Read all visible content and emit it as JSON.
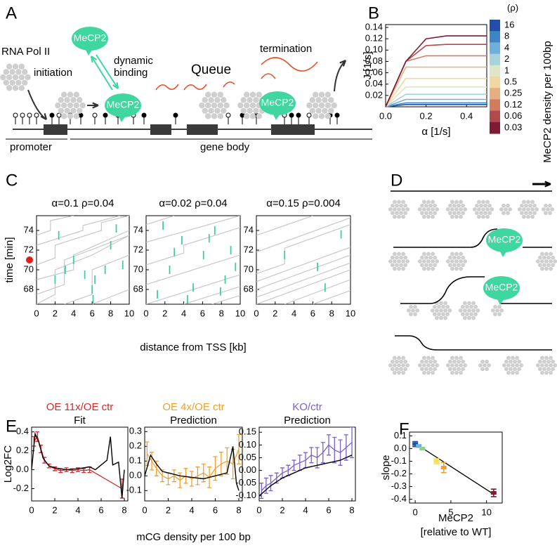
{
  "panel_labels": [
    "A",
    "B",
    "C",
    "D",
    "E",
    "F"
  ],
  "diagram_a": {
    "pol": "RNA Pol II",
    "initiation": "initiation",
    "mecp2": "MeCP2",
    "binding": [
      "dynamic",
      "binding"
    ],
    "queue": "Queue",
    "termination": "termination",
    "promoter": "promoter",
    "gene_body": "gene body"
  },
  "diagram_d": {
    "mecp2": "MeCP2"
  },
  "chart_data": [
    {
      "type": "line",
      "xlabel": "α [1/s]",
      "ylabel": "J [1/s]",
      "colorbar_title": "(ρ)",
      "colorbar_label": "MeCP2 density per 100bp",
      "x": [
        0,
        0.1,
        0.2,
        0.3,
        0.4,
        0.5
      ],
      "xlim": [
        0,
        0.5
      ],
      "xticks": [
        {
          "value": 0,
          "label": "0.0"
        },
        0.2,
        0.4
      ],
      "ylim": [
        0,
        0.145
      ],
      "yticks": [
        0.02,
        0.04,
        0.06,
        0.08,
        {
          "value": 0.1,
          "label": "0.10"
        },
        0.12,
        0.14
      ],
      "series": [
        {
          "name": "16",
          "color": "#1f4fa8",
          "values": [
            0,
            0.004,
            0.004,
            0.004,
            0.004,
            0.004
          ]
        },
        {
          "name": "8",
          "color": "#3d86c6",
          "values": [
            0,
            0.007,
            0.007,
            0.007,
            0.007,
            0.007
          ]
        },
        {
          "name": "4",
          "color": "#6fb0d8",
          "values": [
            0,
            0.013,
            0.013,
            0.013,
            0.013,
            0.013
          ]
        },
        {
          "name": "2",
          "color": "#a8d2dc",
          "values": [
            0,
            0.022,
            0.022,
            0.022,
            0.022,
            0.022
          ]
        },
        {
          "name": "1",
          "color": "#dfe6c4",
          "values": [
            0,
            0.035,
            0.035,
            0.035,
            0.035,
            0.035
          ]
        },
        {
          "name": "0.5",
          "color": "#f2d7a0",
          "values": [
            0,
            0.05,
            0.05,
            0.05,
            0.05,
            0.05
          ]
        },
        {
          "name": "0.25",
          "color": "#e8ae7f",
          "values": [
            0,
            0.07,
            0.07,
            0.07,
            0.07,
            0.07
          ]
        },
        {
          "name": "0.12",
          "color": "#d07c62",
          "values": [
            0,
            0.08,
            0.09,
            0.09,
            0.09,
            0.09
          ]
        },
        {
          "name": "0.06",
          "color": "#b04a4c",
          "values": [
            0,
            0.08,
            0.108,
            0.11,
            0.11,
            0.11
          ]
        },
        {
          "name": "0.03",
          "color": "#7e1a33",
          "values": [
            0,
            0.08,
            0.12,
            0.125,
            0.125,
            0.125
          ]
        }
      ]
    },
    {
      "type": "kymograph",
      "title": "α=0.1    ρ=0.04",
      "ylabel": "time [min]",
      "xlim": [
        0,
        10
      ],
      "xticks": [
        0,
        2,
        4,
        6,
        8,
        10
      ],
      "ylim": [
        66.5,
        75.5
      ],
      "yticks": [
        68,
        70,
        72,
        74
      ],
      "line_color": "#c8c8c8",
      "event_color": "#3fcf9f",
      "lines": [
        {
          "x": [
            0,
            2,
            2,
            6,
            10
          ],
          "y": [
            66.5,
            67.5,
            70,
            71.5,
            73.5
          ]
        },
        {
          "x": [
            0,
            3,
            3,
            10
          ],
          "y": [
            67.5,
            68.5,
            71,
            73.5
          ]
        },
        {
          "x": [
            0,
            4,
            4,
            10
          ],
          "y": [
            69,
            70,
            71.5,
            74
          ]
        },
        {
          "x": [
            0,
            2,
            2,
            7,
            7,
            10
          ],
          "y": [
            70.5,
            71.2,
            72.5,
            74,
            74.8,
            75.5
          ]
        },
        {
          "x": [
            3,
            6,
            6,
            10
          ],
          "y": [
            66.5,
            67.5,
            70,
            71.5
          ]
        },
        {
          "x": [
            6,
            10
          ],
          "y": [
            66.5,
            68
          ]
        },
        {
          "x": [
            0,
            5,
            5,
            9
          ],
          "y": [
            72.5,
            74,
            74.5,
            75.5
          ]
        },
        {
          "x": [
            0,
            1.5,
            1.5,
            4
          ],
          "y": [
            73.5,
            74,
            75,
            75.5
          ]
        }
      ],
      "events": {
        "x": [
          2,
          3.1,
          4,
          5.2,
          6,
          6.3,
          7.4,
          8,
          8.6,
          2.4,
          6.1,
          9.3
        ],
        "y": [
          69,
          70,
          71,
          69.5,
          68,
          69,
          70,
          72.5,
          74.2,
          73.5,
          67,
          70.5
        ]
      }
    },
    {
      "type": "kymograph",
      "title": "α=0.02    ρ=0.04",
      "xlabel": "distance from TSS [kb]",
      "xlim": [
        0,
        10
      ],
      "xticks": [
        0,
        2,
        4,
        6,
        8,
        10
      ],
      "ylim": [
        66.5,
        75.5
      ],
      "yticks": [
        68,
        70,
        72,
        74
      ],
      "line_color": "#c8c8c8",
      "event_color": "#3fcf9f",
      "lines": [
        {
          "x": [
            0,
            10
          ],
          "y": [
            66.5,
            69.5
          ]
        },
        {
          "x": [
            0,
            10
          ],
          "y": [
            68.5,
            71.5
          ]
        },
        {
          "x": [
            0,
            4,
            4,
            10
          ],
          "y": [
            70.5,
            71.7,
            72.5,
            74.3
          ]
        },
        {
          "x": [
            0,
            10
          ],
          "y": [
            72.8,
            75.5
          ]
        },
        {
          "x": [
            4,
            10
          ],
          "y": [
            66.5,
            68.3
          ]
        },
        {
          "x": [
            0,
            3
          ],
          "y": [
            74.6,
            75.5
          ]
        },
        {
          "x": [
            7,
            10
          ],
          "y": [
            66.5,
            67.4
          ]
        }
      ],
      "events": {
        "x": [
          1.2,
          2.5,
          3.8,
          5,
          6.1,
          7.3,
          8.4,
          9,
          1.8,
          4.4,
          6.7,
          9.5,
          3,
          7.9
        ],
        "y": [
          67.5,
          70,
          73,
          68.2,
          71.5,
          74,
          69,
          72,
          74.5,
          67,
          73.2,
          70.3,
          71.8,
          67.8
        ]
      }
    },
    {
      "type": "kymograph",
      "title": "α=0.15    ρ=0.004",
      "xlim": [
        0,
        10
      ],
      "xticks": [
        0,
        2,
        4,
        6,
        8,
        10
      ],
      "ylim": [
        66.5,
        75.5
      ],
      "yticks": [
        68,
        70,
        72,
        74
      ],
      "line_color": "#c8c8c8",
      "event_color": "#3fcf9f",
      "lines": [
        {
          "x": [
            0,
            10
          ],
          "y": [
            66.5,
            70
          ]
        },
        {
          "x": [
            0,
            10
          ],
          "y": [
            67.2,
            70.7
          ]
        },
        {
          "x": [
            0,
            10
          ],
          "y": [
            68,
            71.5
          ]
        },
        {
          "x": [
            0,
            10
          ],
          "y": [
            68.8,
            72.3
          ]
        },
        {
          "x": [
            0,
            3,
            3,
            10
          ],
          "y": [
            69.6,
            70.6,
            72.2,
            74.6
          ]
        },
        {
          "x": [
            0,
            10
          ],
          "y": [
            71.8,
            75.3
          ]
        },
        {
          "x": [
            3,
            10
          ],
          "y": [
            66.5,
            69
          ]
        },
        {
          "x": [
            6,
            10
          ],
          "y": [
            66.5,
            67.9
          ]
        },
        {
          "x": [
            0,
            6
          ],
          "y": [
            73.5,
            75.5
          ]
        }
      ],
      "events": {
        "x": [
          3,
          6.5,
          9,
          7.3
        ],
        "y": [
          71.5,
          70.3,
          73.6,
          68.2
        ]
      }
    },
    {
      "type": "line",
      "title": "OE 11x/OE ctr",
      "title_color": "#d62728",
      "subtitle": "Fit",
      "ylabel": "Log2FC",
      "xlim": [
        0,
        8.3
      ],
      "xticks": [
        0,
        2,
        4,
        6,
        8
      ],
      "ylim": [
        -0.33,
        0.45
      ],
      "yticks": [
        {
          "value": -0.2,
          "label": "-0.2"
        },
        {
          "value": 0,
          "label": "0.0"
        },
        0.2,
        0.4
      ],
      "data": {
        "color": "#d62728",
        "x": [
          0.2,
          0.5,
          0.8,
          1.1,
          1.5,
          2,
          2.5,
          3,
          3.5,
          4,
          4.5,
          5,
          7.8
        ],
        "values": [
          0.3,
          0.35,
          0.22,
          0.1,
          0.04,
          0.01,
          -0.01,
          0,
          -0.01,
          0,
          -0.01,
          0,
          -0.2
        ],
        "errors": [
          0.05,
          0.05,
          0.04,
          0.03,
          0.02,
          0.02,
          0.02,
          0.02,
          0.02,
          0.02,
          0.02,
          0.03,
          0.1
        ]
      },
      "fit": {
        "color": "#000000",
        "x": [
          0,
          0.3,
          0.6,
          1,
          1.5,
          2,
          3,
          4,
          5,
          5.5,
          6,
          6.5,
          6.8,
          7,
          7.5,
          7.8,
          8
        ],
        "values": [
          0,
          0.38,
          0.3,
          0.12,
          0.04,
          0.02,
          0,
          0.01,
          0.03,
          0,
          0.05,
          0.1,
          0.35,
          0.05,
          0.08,
          -0.3,
          0
        ]
      }
    },
    {
      "type": "line",
      "title": "OE 4x/OE ctr",
      "title_color": "#f0a030",
      "subtitle": "Prediction",
      "xlabel": "mCG density per 100 bp",
      "xlim": [
        0,
        8.3
      ],
      "xticks": [
        0,
        2,
        4,
        6,
        8
      ],
      "ylim": [
        -0.17,
        0.33
      ],
      "yticks": [
        {
          "value": -0.1,
          "label": "-0.1"
        },
        {
          "value": 0,
          "label": "0.0"
        },
        0.1,
        0.2,
        0.3
      ],
      "data": {
        "color": "#f0a030",
        "x": [
          0.2,
          0.6,
          1,
          1.5,
          2,
          2.5,
          3,
          3.5,
          4,
          4.5,
          5,
          5.5,
          6,
          6.5,
          7,
          7.5,
          8
        ],
        "values": [
          0.15,
          0.1,
          0.05,
          0,
          -0.02,
          0,
          -0.03,
          0,
          -0.02,
          0,
          0.02,
          -0.01,
          0.05,
          0.08,
          0.1,
          0.08,
          0.18
        ],
        "errors": [
          0.08,
          0.06,
          0.05,
          0.04,
          0.04,
          0.04,
          0.05,
          0.05,
          0.05,
          0.06,
          0.06,
          0.07,
          0.08,
          0.08,
          0.09,
          0.1,
          0.1
        ]
      },
      "fit": {
        "color": "#000000",
        "x": [
          0,
          0.5,
          1,
          1.5,
          2,
          3,
          4,
          5,
          6,
          7,
          7.5,
          7.8,
          8
        ],
        "values": [
          0,
          0.14,
          0.08,
          0.03,
          0.02,
          0,
          -0.01,
          -0.02,
          0,
          0.02,
          0.2,
          -0.05,
          -0.1
        ]
      }
    },
    {
      "type": "line",
      "title": "KO/ctr",
      "title_color": "#7b5fd0",
      "subtitle": "Prediction",
      "xlim": [
        0,
        8.3
      ],
      "xticks": [
        0,
        2,
        4,
        6,
        8
      ],
      "ylim": [
        -0.12,
        0.17
      ],
      "yticks": [
        {
          "value": -0.1,
          "label": "-0.10"
        },
        {
          "value": -0.05,
          "label": "-0.05"
        },
        {
          "value": 0,
          "label": "0.00"
        },
        0.05,
        {
          "value": 0.1,
          "label": "0.10"
        },
        0.15
      ],
      "data": {
        "color": "#7b5fd0",
        "x": [
          0.2,
          0.6,
          1,
          1.5,
          2,
          2.5,
          3,
          3.5,
          4,
          4.5,
          5,
          5.5,
          6,
          6.5,
          7,
          7.5,
          8
        ],
        "values": [
          -0.08,
          -0.06,
          -0.05,
          -0.03,
          -0.01,
          0,
          0.02,
          0.03,
          0.04,
          0.06,
          0.05,
          0.07,
          0.1,
          0.08,
          0.07,
          0.09,
          0.11
        ],
        "errors": [
          0.03,
          0.03,
          0.03,
          0.02,
          0.02,
          0.02,
          0.02,
          0.03,
          0.03,
          0.03,
          0.04,
          0.04,
          0.04,
          0.05,
          0.05,
          0.05,
          0.06
        ]
      },
      "fit": {
        "color": "#000000",
        "x": [
          0,
          0.5,
          1,
          2,
          3,
          4,
          5,
          6,
          7,
          7.5,
          8
        ],
        "values": [
          -0.1,
          -0.08,
          -0.06,
          -0.03,
          -0.01,
          0.01,
          0.02,
          0.03,
          0.04,
          0.05,
          0.06
        ]
      }
    },
    {
      "type": "scatter",
      "xlabel": [
        "MeCP2",
        "[relative to WT]"
      ],
      "ylabel": "slope",
      "xlim": [
        -0.8,
        12.2
      ],
      "xticks": [
        0,
        5,
        10
      ],
      "ylim": [
        -0.43,
        0.13
      ],
      "yticks": [
        0.1,
        {
          "value": 0,
          "label": "0.0"
        },
        {
          "value": -0.1,
          "label": "-0.1"
        },
        {
          "value": -0.2,
          "label": "-0.2"
        },
        {
          "value": -0.3,
          "label": "-0.3"
        },
        {
          "value": -0.4,
          "label": "-0.4"
        }
      ],
      "x": [
        0,
        0.5,
        1,
        3,
        4,
        11
      ],
      "values": [
        0.035,
        0.02,
        0,
        -0.1,
        -0.15,
        -0.35
      ],
      "errors": [
        0.02,
        0.01,
        0.01,
        0.02,
        0.04,
        0.03
      ],
      "colors": [
        "#1f4fa8",
        "#6fb0d8",
        "#8fd08a",
        "#f2e060",
        "#f0a030",
        "#7e1a33"
      ],
      "fit": {
        "color": "#000000",
        "x": [
          0,
          11
        ],
        "values": [
          0.04,
          -0.36
        ]
      }
    }
  ]
}
